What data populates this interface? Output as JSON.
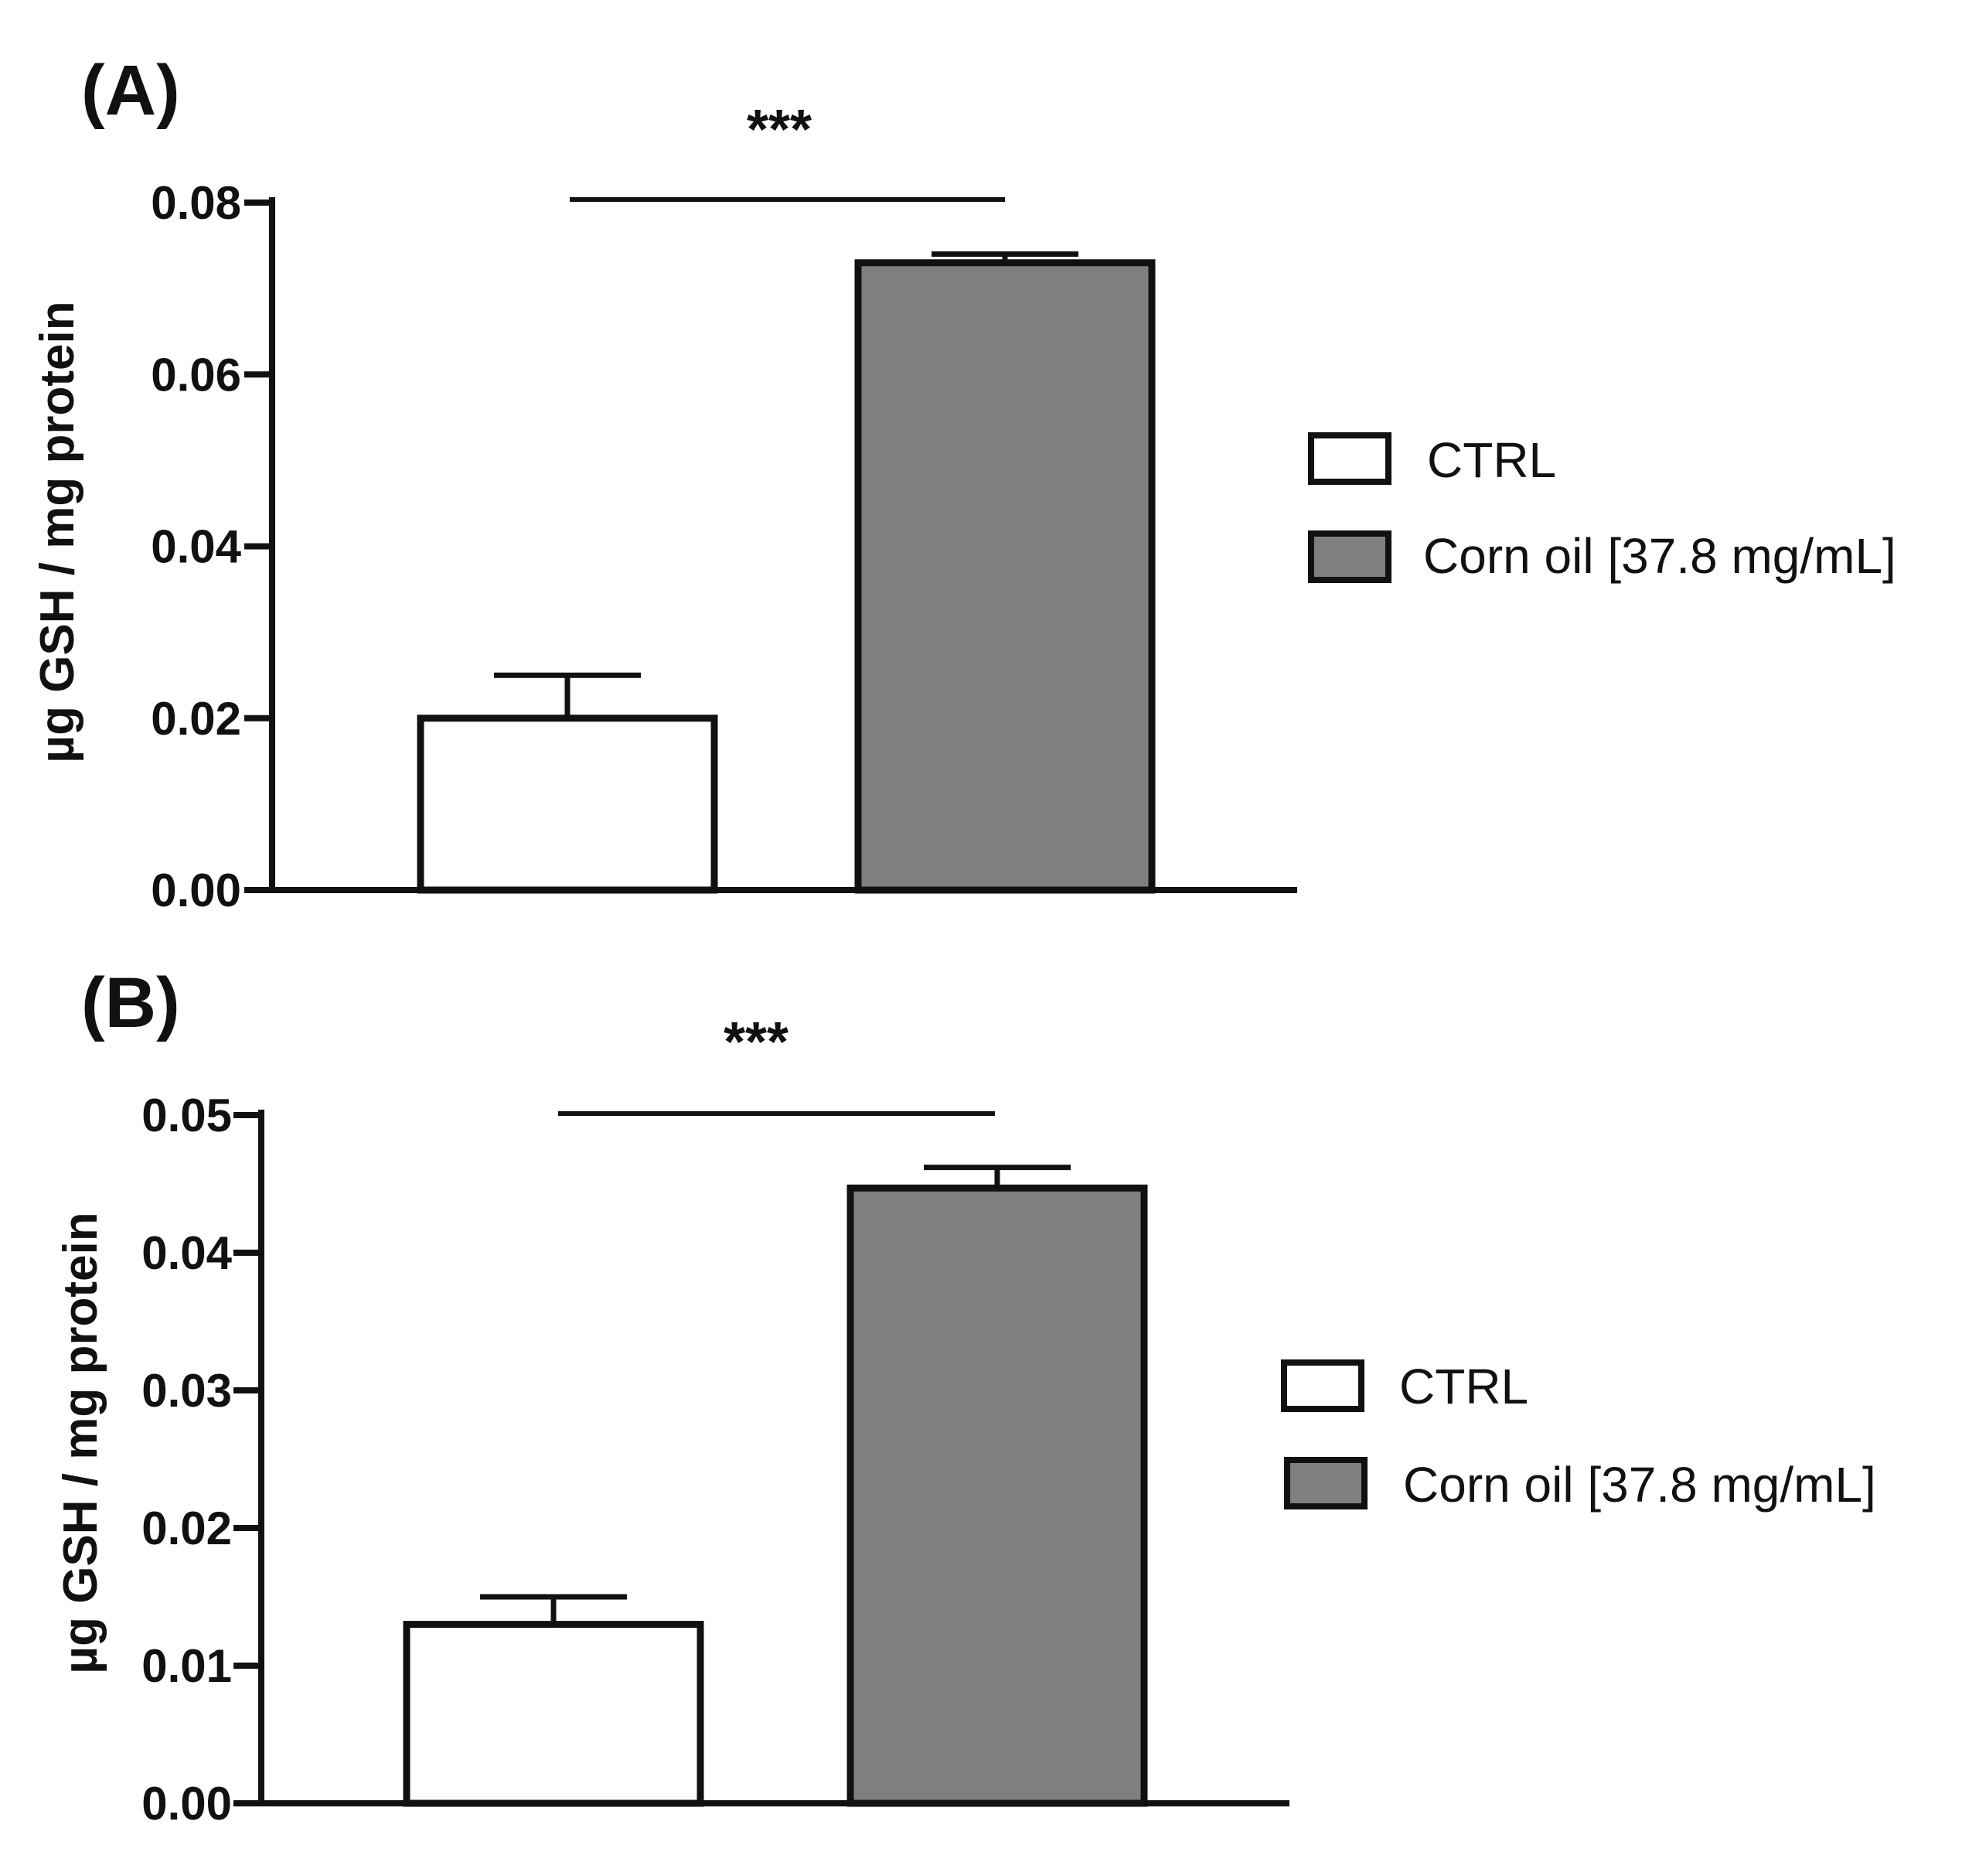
{
  "chart_data": [
    {
      "type": "bar",
      "panel_label": "(A)",
      "categories": [
        "CTRL",
        "Corn oil [37.8 mg/mL]"
      ],
      "values": [
        0.02,
        0.073
      ],
      "errors": [
        0.005,
        0.001
      ],
      "colors": [
        "#ffffff",
        "#7f7f7f"
      ],
      "ylabel": "µg GSH / mg protein",
      "ylim": [
        0,
        0.08
      ],
      "yticks": [
        "0.00",
        "0.02",
        "0.04",
        "0.06",
        "0.08"
      ],
      "ytick_values": [
        0,
        0.02,
        0.04,
        0.06,
        0.08
      ],
      "significance": "***",
      "legend": [
        "CTRL",
        "Corn oil [37.8 mg/mL]"
      ],
      "legend_position": "right"
    },
    {
      "type": "bar",
      "panel_label": "(B)",
      "categories": [
        "CTRL",
        "Corn oil [37.8 mg/mL]"
      ],
      "values": [
        0.013,
        0.0447
      ],
      "errors": [
        0.002,
        0.0015
      ],
      "colors": [
        "#ffffff",
        "#7f7f7f"
      ],
      "ylabel": "µg GSH / mg protein",
      "ylim": [
        0,
        0.05
      ],
      "yticks": [
        "0.00",
        "0.01",
        "0.02",
        "0.03",
        "0.04",
        "0.05"
      ],
      "ytick_values": [
        0,
        0.01,
        0.02,
        0.03,
        0.04,
        0.05
      ],
      "significance": "***",
      "legend": [
        "CTRL",
        "Corn oil [37.8 mg/mL]"
      ],
      "legend_position": "right"
    }
  ]
}
